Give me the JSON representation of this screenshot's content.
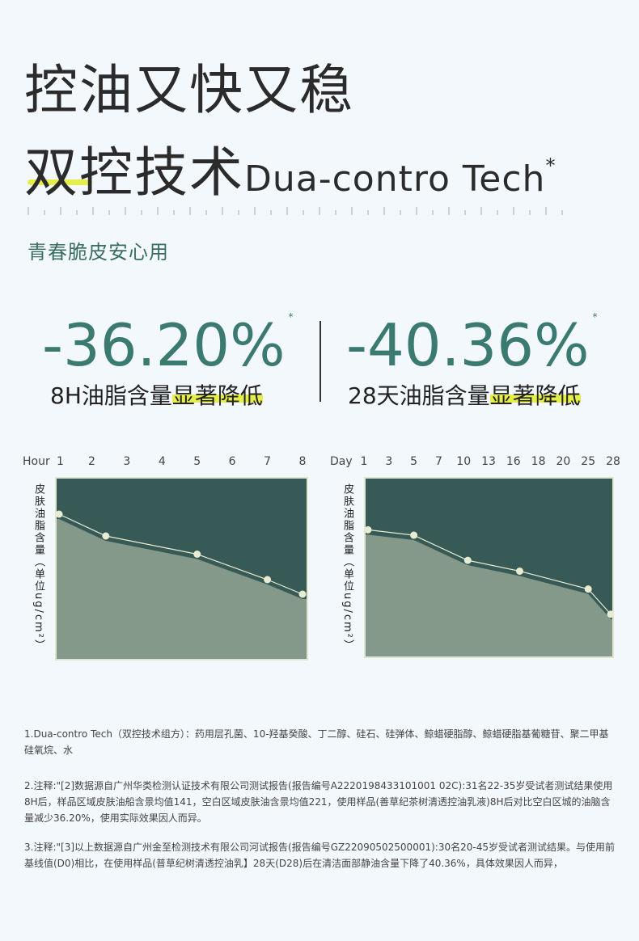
{
  "title": {
    "line1": "控油又快又稳",
    "line2_cn": "双控技术",
    "line2_en": "Dua-contro Tech",
    "line2_star": "*"
  },
  "subtitle": "青春脆皮安心用",
  "stats": [
    {
      "value": "-36.20%",
      "star": "*",
      "caption_plain": "8H油脂含量",
      "caption_mark": "显著降低"
    },
    {
      "value": "-40.36%",
      "star": "*",
      "caption_plain": "28天油脂含量",
      "caption_mark": "显著降低"
    }
  ],
  "colors": {
    "accent": "#3a7a70",
    "highlight": "#e6ef4a",
    "chart_bg": "#375a56",
    "chart_fill": "#85998a",
    "point": "#e8ecd2"
  },
  "chart_data": [
    {
      "type": "area",
      "xlabel": "Hour",
      "ylabel": "皮肤油脂含量（单位ug/cm²）",
      "x_ticks": [
        "1",
        "2",
        "3",
        "4",
        "5",
        "6",
        "7",
        "8"
      ],
      "x": [
        1,
        2.4,
        5,
        7,
        8
      ],
      "values": [
        0.8,
        0.68,
        0.58,
        0.44,
        0.36
      ],
      "ylim": [
        0,
        1
      ],
      "note": "relative level, no y ticks"
    },
    {
      "type": "area",
      "xlabel": "Day",
      "ylabel": "皮肤油脂含量（单位ug/cm²）",
      "x_ticks": [
        "1",
        "3",
        "5",
        "7",
        "10",
        "13",
        "16",
        "18",
        "20",
        "25",
        "28"
      ],
      "x": [
        1,
        5,
        10.5,
        16.5,
        25,
        28
      ],
      "values": [
        0.71,
        0.68,
        0.54,
        0.48,
        0.38,
        0.24
      ],
      "ylim": [
        0,
        1
      ],
      "note": "relative level, no y ticks"
    }
  ],
  "notes": [
    "1.Dua-contro Tech（双控技术组方）：药用层孔菌、10-羟基癸酸、丁二醇、硅石、硅弹体、鲸蜡硬脂醇、鲸蜡硬脂基葡糖苷、聚二甲基硅氧烷、水",
    "2.注释:\"[2]数据源自广州华类检测认证技术有限公司测试报告(报告编号A2220198433101001 02C):31名22-35岁受试者测试结果使用8H后，样品区域皮肤油船含景均值141，空白区域皮肤油含景均值221，使用样品(善草纪茶树清透控油乳液)8H后对比空白区城的油脑含量减少36.20%，使用实际效果因人而异。",
    "3.注释:\"[3]以上数据源自广州金至检测技术有限公司河试报告(报告编号GZ22090502500001):30名20-45岁受试者测试结果。与使用前基线值(D0)相比，在使用样品(普草纪树清透控油乳】28天(D28)后在清洁面部静油含量下降了40.36%，具体效果因人而异，"
  ]
}
